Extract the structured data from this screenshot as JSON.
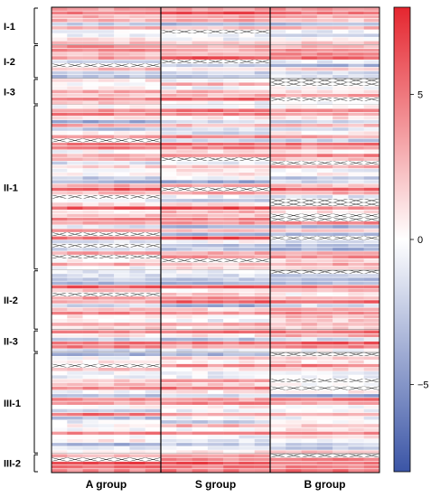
{
  "chart_data": {
    "type": "heatmap",
    "x_groups": [
      "A group",
      "S group",
      "B group"
    ],
    "columns_per_group": 7,
    "y_groups": [
      {
        "name": "I-1",
        "rows": 10
      },
      {
        "name": "I-2",
        "rows": 9
      },
      {
        "name": "I-3",
        "rows": 7
      },
      {
        "name": "II-1",
        "rows": 44
      },
      {
        "name": "II-2",
        "rows": 16
      },
      {
        "name": "II-3",
        "rows": 6
      },
      {
        "name": "III-1",
        "rows": 27
      },
      {
        "name": "III-2",
        "rows": 5
      }
    ],
    "colorbar": {
      "min": -8,
      "max": 8,
      "ticks": [
        5,
        0,
        -5
      ],
      "tick_labels": [
        "5",
        "0",
        "−5"
      ],
      "colors": {
        "high": "#e5262f",
        "mid": "#ffffff",
        "low": "#3b55a6"
      }
    },
    "missing_marker": "cross"
  }
}
